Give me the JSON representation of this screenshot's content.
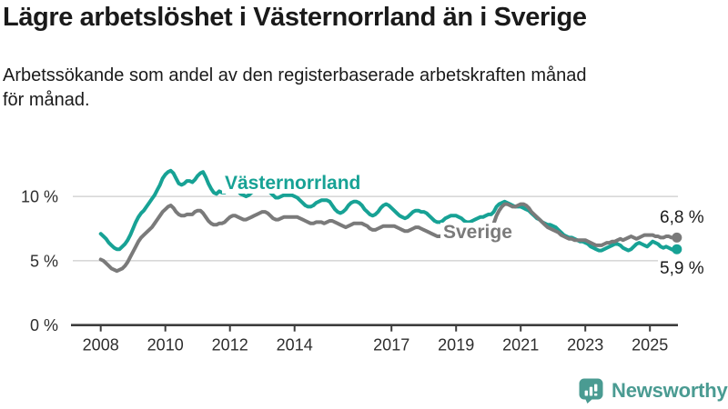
{
  "header": {
    "title": "Lägre arbetslöshet i Västernorrland än i Sverige",
    "subtitle": "Arbetssökande som andel av den registerbaserade arbetskraften månad\nför månad."
  },
  "chart_data": {
    "type": "line",
    "title": "Lägre arbetslöshet i Västernorrland än i Sverige",
    "subtitle": "Arbetssökande som andel av den registerbaserade arbetskraften månad för månad.",
    "unit": "%",
    "frequency": "monthly",
    "x_start_year": 2008,
    "x_start_month": 1,
    "x_end": "2025-11",
    "x_ticks": [
      2008,
      2010,
      2012,
      2014,
      2017,
      2019,
      2021,
      2023,
      2025
    ],
    "y_ticks": [
      0,
      5,
      10
    ],
    "y_tick_suffix": " %",
    "ylim": [
      0,
      13
    ],
    "grid": "horizontal",
    "legend_position": "inline-labels",
    "series": [
      {
        "name": "Västernorrland",
        "color": "#17A295",
        "end_label": "5,9 %",
        "end_value": 5.9,
        "values": [
          7.1,
          6.9,
          6.7,
          6.4,
          6.2,
          6.0,
          5.9,
          5.9,
          6.1,
          6.3,
          6.6,
          7.0,
          7.5,
          8.0,
          8.4,
          8.7,
          8.9,
          9.2,
          9.5,
          9.8,
          10.1,
          10.5,
          10.9,
          11.4,
          11.7,
          11.9,
          12.0,
          11.8,
          11.4,
          11.0,
          10.9,
          11.0,
          11.2,
          11.2,
          11.1,
          11.3,
          11.6,
          11.8,
          11.9,
          11.5,
          11.0,
          10.6,
          10.3,
          10.2,
          10.4,
          10.3,
          10.3,
          10.5,
          10.6,
          10.7,
          10.6,
          10.4,
          10.2,
          10.1,
          10.0,
          10.1,
          10.3,
          10.4,
          10.5,
          10.6,
          10.7,
          10.6,
          10.5,
          10.3,
          10.1,
          9.9,
          9.9,
          10.0,
          10.1,
          10.1,
          10.1,
          10.1,
          10.0,
          9.9,
          9.7,
          9.5,
          9.3,
          9.2,
          9.2,
          9.3,
          9.5,
          9.6,
          9.7,
          9.7,
          9.7,
          9.6,
          9.3,
          9.0,
          8.8,
          8.7,
          8.8,
          9.0,
          9.3,
          9.5,
          9.6,
          9.6,
          9.5,
          9.3,
          9.0,
          8.8,
          8.6,
          8.5,
          8.6,
          8.8,
          9.1,
          9.3,
          9.4,
          9.3,
          9.1,
          8.9,
          8.7,
          8.5,
          8.4,
          8.3,
          8.4,
          8.6,
          8.8,
          8.9,
          8.9,
          8.8,
          8.8,
          8.7,
          8.5,
          8.3,
          8.1,
          8.0,
          8.0,
          8.1,
          8.3,
          8.4,
          8.5,
          8.5,
          8.5,
          8.4,
          8.3,
          8.1,
          8.0,
          8.0,
          8.1,
          8.2,
          8.3,
          8.4,
          8.4,
          8.5,
          8.6,
          8.6,
          8.8,
          9.2,
          9.4,
          9.5,
          9.6,
          9.5,
          9.4,
          9.3,
          9.2,
          9.2,
          9.2,
          9.1,
          9.0,
          8.9,
          8.7,
          8.5,
          8.3,
          8.2,
          8.0,
          7.9,
          7.8,
          7.8,
          7.7,
          7.6,
          7.4,
          7.2,
          7.0,
          6.9,
          6.8,
          6.8,
          6.7,
          6.6,
          6.5,
          6.5,
          6.4,
          6.3,
          6.1,
          6.0,
          5.9,
          5.8,
          5.8,
          5.9,
          6.0,
          6.1,
          6.2,
          6.3,
          6.3,
          6.2,
          6.0,
          5.9,
          5.8,
          5.9,
          6.1,
          6.3,
          6.4,
          6.3,
          6.2,
          6.1,
          6.3,
          6.5,
          6.4,
          6.3,
          6.1,
          6.0,
          6.1,
          6.0,
          5.9,
          5.8,
          5.9
        ]
      },
      {
        "name": "Sverige",
        "color": "#7A7A7A",
        "end_label": "6,8 %",
        "end_value": 6.8,
        "values": [
          5.1,
          5.0,
          4.8,
          4.6,
          4.4,
          4.3,
          4.2,
          4.3,
          4.4,
          4.6,
          4.9,
          5.3,
          5.7,
          6.1,
          6.5,
          6.8,
          7.0,
          7.2,
          7.4,
          7.6,
          7.9,
          8.2,
          8.5,
          8.8,
          9.0,
          9.2,
          9.3,
          9.1,
          8.8,
          8.6,
          8.5,
          8.5,
          8.6,
          8.6,
          8.6,
          8.8,
          8.9,
          8.9,
          8.7,
          8.4,
          8.1,
          7.9,
          7.8,
          7.8,
          7.9,
          7.9,
          8.0,
          8.2,
          8.4,
          8.5,
          8.5,
          8.4,
          8.3,
          8.2,
          8.2,
          8.3,
          8.4,
          8.5,
          8.6,
          8.7,
          8.8,
          8.8,
          8.7,
          8.5,
          8.3,
          8.2,
          8.2,
          8.3,
          8.4,
          8.4,
          8.4,
          8.4,
          8.4,
          8.4,
          8.3,
          8.2,
          8.1,
          8.0,
          7.9,
          7.9,
          8.0,
          8.0,
          8.0,
          7.9,
          8.0,
          8.1,
          8.1,
          8.0,
          7.9,
          7.8,
          7.7,
          7.6,
          7.7,
          7.8,
          7.9,
          7.9,
          7.9,
          7.9,
          7.8,
          7.7,
          7.5,
          7.4,
          7.4,
          7.5,
          7.6,
          7.7,
          7.7,
          7.7,
          7.7,
          7.7,
          7.6,
          7.5,
          7.4,
          7.3,
          7.3,
          7.4,
          7.5,
          7.6,
          7.6,
          7.5,
          7.4,
          7.3,
          7.2,
          7.1,
          7.0,
          6.9,
          6.9,
          7.0,
          7.0,
          7.1,
          7.1,
          7.1,
          7.1,
          7.0,
          6.9,
          6.9,
          6.8,
          6.9,
          7.0,
          7.1,
          7.2,
          7.3,
          7.4,
          7.4,
          7.5,
          7.6,
          7.9,
          8.5,
          8.9,
          9.2,
          9.4,
          9.4,
          9.3,
          9.2,
          9.2,
          9.3,
          9.4,
          9.4,
          9.3,
          9.1,
          8.8,
          8.6,
          8.4,
          8.2,
          8.0,
          7.8,
          7.6,
          7.5,
          7.4,
          7.3,
          7.2,
          7.0,
          6.9,
          6.8,
          6.7,
          6.7,
          6.6,
          6.6,
          6.6,
          6.6,
          6.6,
          6.5,
          6.4,
          6.3,
          6.2,
          6.2,
          6.2,
          6.3,
          6.4,
          6.4,
          6.5,
          6.5,
          6.6,
          6.7,
          6.6,
          6.7,
          6.8,
          6.9,
          6.8,
          6.7,
          6.8,
          6.9,
          7.0,
          7.0,
          7.0,
          7.0,
          6.9,
          6.9,
          6.8,
          6.8,
          6.9,
          6.9,
          6.8,
          6.8,
          6.8
        ]
      }
    ]
  },
  "branding": {
    "logo_text": "Newsworthy",
    "logo_color": "#4A9B92",
    "logo_icon": "bar-chart-speech-bubble"
  }
}
